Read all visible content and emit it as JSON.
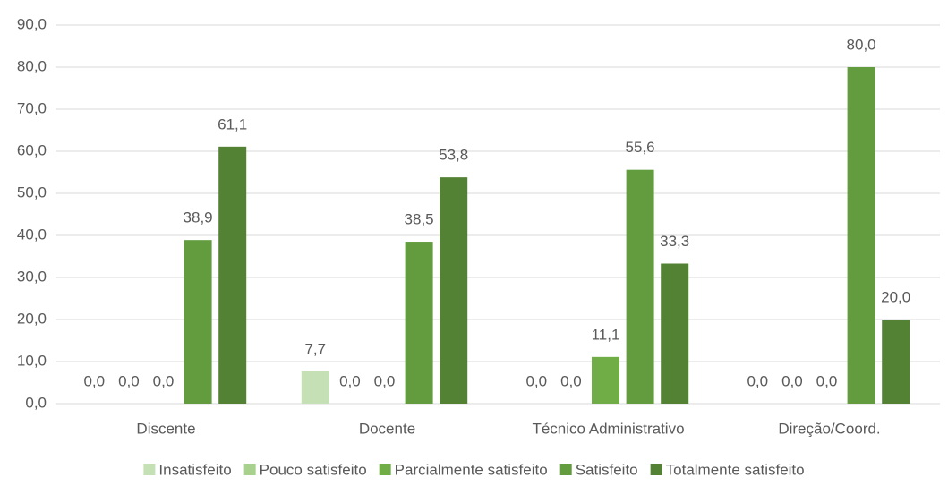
{
  "chart_data": {
    "type": "bar",
    "categories": [
      "Discente",
      "Docente",
      "Técnico Administrativo",
      "Direção/Coord."
    ],
    "series": [
      {
        "name": "Insatisfeito",
        "color": "#c5e0b4",
        "values": [
          0,
          7.7,
          0,
          0
        ],
        "value_labels": [
          "0,0",
          "7,7",
          "0,0",
          "0,0"
        ]
      },
      {
        "name": "Pouco satisfeito",
        "color": "#a9d18e",
        "values": [
          0,
          0,
          0,
          0
        ],
        "value_labels": [
          "0,0",
          "0,0",
          "0,0",
          "0,0"
        ]
      },
      {
        "name": "Parcialmente satisfeito",
        "color": "#70ad47",
        "values": [
          0,
          0,
          11.1,
          0
        ],
        "value_labels": [
          "0,0",
          "0,0",
          "11,1",
          "0,0"
        ]
      },
      {
        "name": "Satisfeito",
        "color": "#629c3e",
        "values": [
          38.9,
          38.5,
          55.6,
          80
        ],
        "value_labels": [
          "38,9",
          "38,5",
          "55,6",
          "80,0"
        ]
      },
      {
        "name": "Totalmente satisfeito",
        "color": "#548235",
        "values": [
          61.1,
          53.8,
          33.3,
          20
        ],
        "value_labels": [
          "61,1",
          "53,8",
          "33,3",
          "20,0"
        ]
      }
    ],
    "ylim": [
      0,
      90
    ],
    "yticks": [
      {
        "value": 0,
        "label": "0,0"
      },
      {
        "value": 10,
        "label": "10,0"
      },
      {
        "value": 20,
        "label": "20,0"
      },
      {
        "value": 30,
        "label": "30,0"
      },
      {
        "value": 40,
        "label": "40,0"
      },
      {
        "value": 50,
        "label": "50,0"
      },
      {
        "value": 60,
        "label": "60,0"
      },
      {
        "value": 70,
        "label": "70,0"
      },
      {
        "value": 80,
        "label": "80,0"
      },
      {
        "value": 90,
        "label": "90,0"
      }
    ],
    "grid": true,
    "legend": "bottom"
  }
}
